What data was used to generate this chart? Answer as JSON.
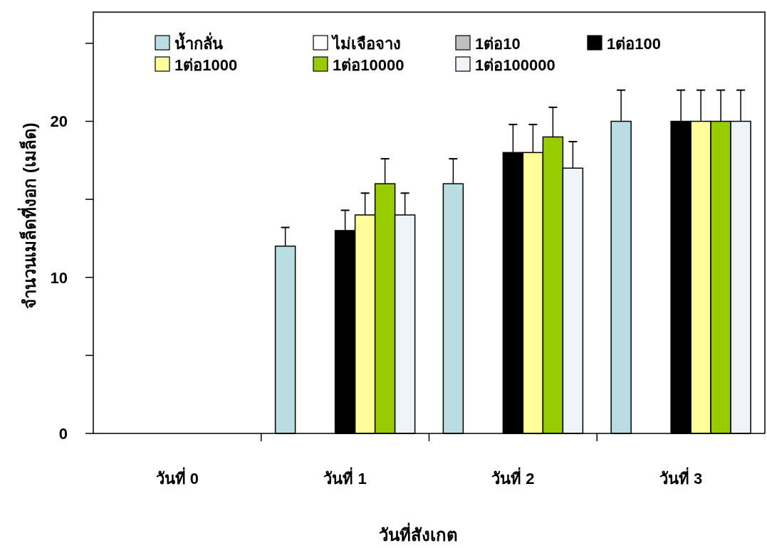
{
  "chart_data": {
    "type": "bar",
    "xlabel": "วันที่สังเกต",
    "ylabel": "จำนวนเมล็ดที่งอก (เมล็ด)",
    "categories": [
      "วันที่ 0",
      "วันที่ 1",
      "วันที่ 2",
      "วันที่ 3"
    ],
    "ylim": [
      0,
      27
    ],
    "yticks": [
      0,
      {
        "value": 5,
        "label": null
      },
      10,
      {
        "value": 15,
        "label": null
      },
      20,
      {
        "value": 25,
        "label": null
      }
    ],
    "grid": false,
    "legend": "top left",
    "series": [
      {
        "name": "น้ำกลั่น",
        "color": "#b9dde0",
        "values": [
          0,
          12,
          16,
          20
        ],
        "errors": [
          null,
          [
            12,
            13.2
          ],
          [
            16,
            17.6
          ],
          [
            20,
            22
          ]
        ]
      },
      {
        "name": "ไม่เจือจาง",
        "color": "#ffffff",
        "values": [
          0,
          0,
          0,
          0
        ]
      },
      {
        "name": "1ต่อ10",
        "color": "#c0c0c0",
        "values": [
          0,
          0,
          0,
          0
        ]
      },
      {
        "name": "1ต่อ100",
        "color": "#000000",
        "values": [
          0,
          13,
          18,
          20
        ],
        "errors": [
          null,
          [
            13,
            14.3
          ],
          [
            18,
            19.8
          ],
          [
            20,
            22
          ]
        ]
      },
      {
        "name": "1ต่อ1000",
        "color": "#ffff99",
        "values": [
          0,
          14,
          18,
          20
        ],
        "errors": [
          null,
          [
            14,
            15.4
          ],
          [
            18,
            19.8
          ],
          [
            20,
            22
          ]
        ]
      },
      {
        "name": "1ต่อ10000",
        "color": "#99cc00",
        "values": [
          0,
          16,
          19,
          20
        ],
        "errors": [
          null,
          [
            16,
            17.6
          ],
          [
            19,
            20.9
          ],
          [
            20,
            22
          ]
        ]
      },
      {
        "name": "1ต่อ100000",
        "color": "#eef4f8",
        "values": [
          0,
          14,
          17,
          20
        ],
        "errors": [
          null,
          [
            14,
            15.4
          ],
          [
            17,
            18.7
          ],
          [
            20,
            22
          ]
        ]
      }
    ]
  }
}
